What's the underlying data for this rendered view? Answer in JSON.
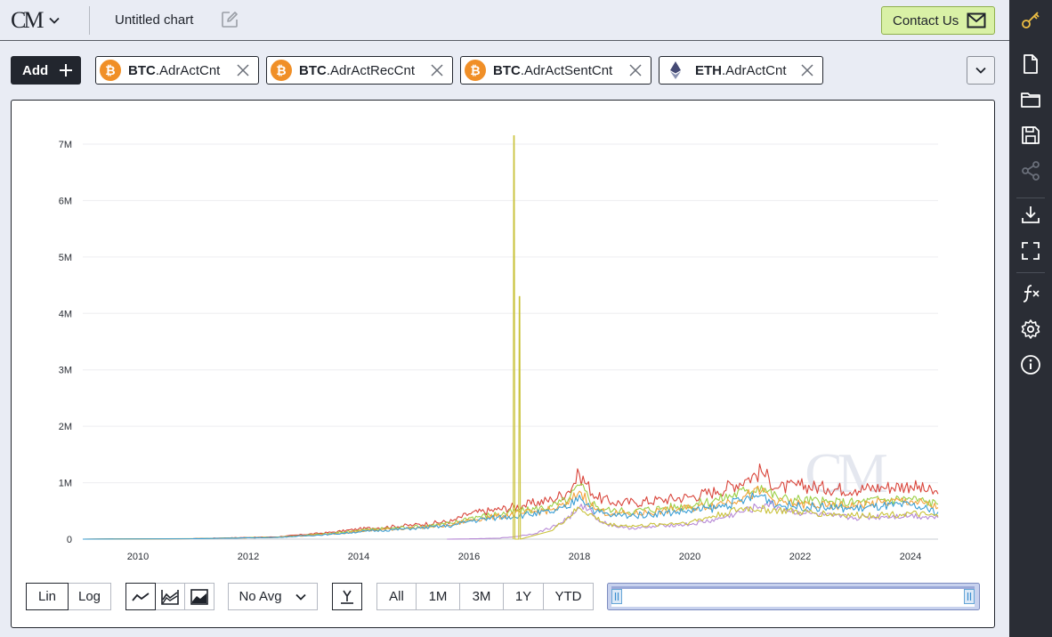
{
  "header": {
    "logo_text": "CM",
    "title": "Untitled chart",
    "contact_label": "Contact Us"
  },
  "series_bar": {
    "add_label": "Add",
    "chips": [
      {
        "asset": "BTC",
        "metric": ".AdrActCnt",
        "icon": "bitcoin-icon"
      },
      {
        "asset": "BTC",
        "metric": ".AdrActRecCnt",
        "icon": "bitcoin-icon"
      },
      {
        "asset": "BTC",
        "metric": ".AdrActSentCnt",
        "icon": "bitcoin-icon"
      },
      {
        "asset": "ETH",
        "metric": ".AdrActCnt",
        "icon": "ethereum-icon"
      }
    ]
  },
  "controls": {
    "scale": [
      "Lin",
      "Log"
    ],
    "scale_active": "Lin",
    "avg_label": "No Avg",
    "range_buttons": [
      "All",
      "1M",
      "3M",
      "1Y",
      "YTD"
    ]
  },
  "colors": {
    "accent_green": "#d9f1a6",
    "btc_orange": "#f08f27",
    "dark": "#22262e",
    "rail_bg": "#2a2d35",
    "rail_icon": "#ffffff",
    "rail_icon_active": "#f0c043",
    "rail_icon_disabled": "#6a6f7a"
  },
  "rail_icons": [
    "key-icon",
    "new-document-icon",
    "folder-icon",
    "save-icon",
    "share-icon",
    "download-icon",
    "fullscreen-icon",
    "formula-icon",
    "settings-icon",
    "info-icon"
  ],
  "chart_data": {
    "type": "line",
    "watermark": "CM",
    "x_ticks": [
      "2010",
      "2012",
      "2014",
      "2016",
      "2018",
      "2020",
      "2022",
      "2024"
    ],
    "y_ticks": [
      "0",
      "1M",
      "2M",
      "3M",
      "4M",
      "5M",
      "6M",
      "7M"
    ],
    "ylim": [
      0,
      7000000
    ],
    "xlim": [
      2009.0,
      2024.5
    ],
    "series": [
      {
        "color": "#d9453b",
        "x": [
          2009.0,
          2011.0,
          2012.5,
          2013.5,
          2014.0,
          2015.0,
          2015.7,
          2016.0,
          2016.5,
          2017.0,
          2017.5,
          2017.8,
          2018.0,
          2018.3,
          2018.6,
          2019.0,
          2019.5,
          2020.0,
          2020.5,
          2021.0,
          2021.3,
          2021.6,
          2022.0,
          2022.5,
          2023.0,
          2023.5,
          2024.0,
          2024.5
        ],
        "y": [
          0,
          10000,
          40000,
          120000,
          180000,
          250000,
          320000,
          450000,
          520000,
          600000,
          700000,
          850000,
          1150000,
          750000,
          650000,
          650000,
          700000,
          750000,
          850000,
          1050000,
          1200000,
          900000,
          950000,
          900000,
          880000,
          920000,
          950000,
          800000
        ]
      },
      {
        "color": "#9ccf46",
        "x": [
          2009.0,
          2011.0,
          2012.5,
          2013.5,
          2014.0,
          2015.0,
          2015.7,
          2016.0,
          2016.5,
          2017.0,
          2017.5,
          2017.8,
          2018.0,
          2018.3,
          2018.6,
          2019.0,
          2019.5,
          2020.0,
          2020.5,
          2021.0,
          2021.3,
          2021.6,
          2022.0,
          2022.5,
          2023.0,
          2023.5,
          2024.0,
          2024.5
        ],
        "y": [
          0,
          9000,
          35000,
          100000,
          160000,
          220000,
          280000,
          380000,
          440000,
          500000,
          580000,
          700000,
          950000,
          580000,
          500000,
          500000,
          550000,
          600000,
          700000,
          850000,
          950000,
          720000,
          700000,
          650000,
          650000,
          700000,
          720000,
          620000
        ]
      },
      {
        "color": "#f3a33b",
        "x": [
          2009.0,
          2011.0,
          2012.5,
          2013.5,
          2014.0,
          2015.0,
          2015.7,
          2016.0,
          2016.5,
          2017.0,
          2017.5,
          2017.8,
          2018.0,
          2018.3,
          2018.6,
          2019.0,
          2019.5,
          2020.0,
          2020.5,
          2021.0,
          2021.3,
          2021.6,
          2022.0,
          2022.5,
          2023.0,
          2023.5,
          2024.0,
          2024.5
        ],
        "y": [
          0,
          8000,
          30000,
          90000,
          140000,
          200000,
          250000,
          340000,
          400000,
          460000,
          520000,
          620000,
          850000,
          520000,
          450000,
          450000,
          500000,
          550000,
          620000,
          760000,
          850000,
          650000,
          620000,
          580000,
          600000,
          650000,
          680000,
          560000
        ]
      },
      {
        "color": "#3a9fd6",
        "x": [
          2009.0,
          2011.0,
          2012.5,
          2013.5,
          2014.0,
          2015.0,
          2015.7,
          2016.0,
          2016.5,
          2017.0,
          2017.5,
          2017.8,
          2018.0,
          2018.3,
          2018.6,
          2019.0,
          2019.5,
          2020.0,
          2020.5,
          2021.0,
          2021.3,
          2021.6,
          2022.0,
          2022.5,
          2023.0,
          2023.5,
          2024.0,
          2024.5
        ],
        "y": [
          0,
          8000,
          30000,
          85000,
          130000,
          190000,
          240000,
          320000,
          380000,
          430000,
          480000,
          560000,
          780000,
          480000,
          420000,
          420000,
          460000,
          500000,
          560000,
          700000,
          780000,
          600000,
          580000,
          560000,
          540000,
          580000,
          600000,
          480000
        ]
      },
      {
        "color": "#b78ad6",
        "x": [
          2015.6,
          2016.0,
          2016.5,
          2016.8,
          2017.2,
          2017.6,
          2017.9,
          2018.1,
          2018.4,
          2018.8,
          2019.2,
          2019.6,
          2020.0,
          2020.5,
          2021.0,
          2021.4,
          2021.8,
          2022.2,
          2022.6,
          2023.0,
          2023.5,
          2024.0,
          2024.5
        ],
        "y": [
          0,
          5000,
          15000,
          40000,
          100000,
          250000,
          450000,
          600000,
          300000,
          200000,
          200000,
          250000,
          260000,
          350000,
          500000,
          620000,
          500000,
          450000,
          400000,
          380000,
          400000,
          420000,
          380000
        ]
      },
      {
        "color": "#c9c23a",
        "x": [
          2016.8,
          2016.81,
          2016.82,
          2016.83,
          2016.9,
          2016.91,
          2016.92,
          2016.93,
          2017.5,
          2018.0,
          2018.5,
          2019.0,
          2020.0,
          2021.0,
          2022.0,
          2023.0,
          2024.0,
          2024.5
        ],
        "y": [
          0,
          7150000,
          7150000,
          0,
          0,
          4300000,
          4300000,
          0,
          150000,
          550000,
          260000,
          230000,
          300000,
          550000,
          480000,
          420000,
          450000,
          400000
        ]
      }
    ]
  }
}
